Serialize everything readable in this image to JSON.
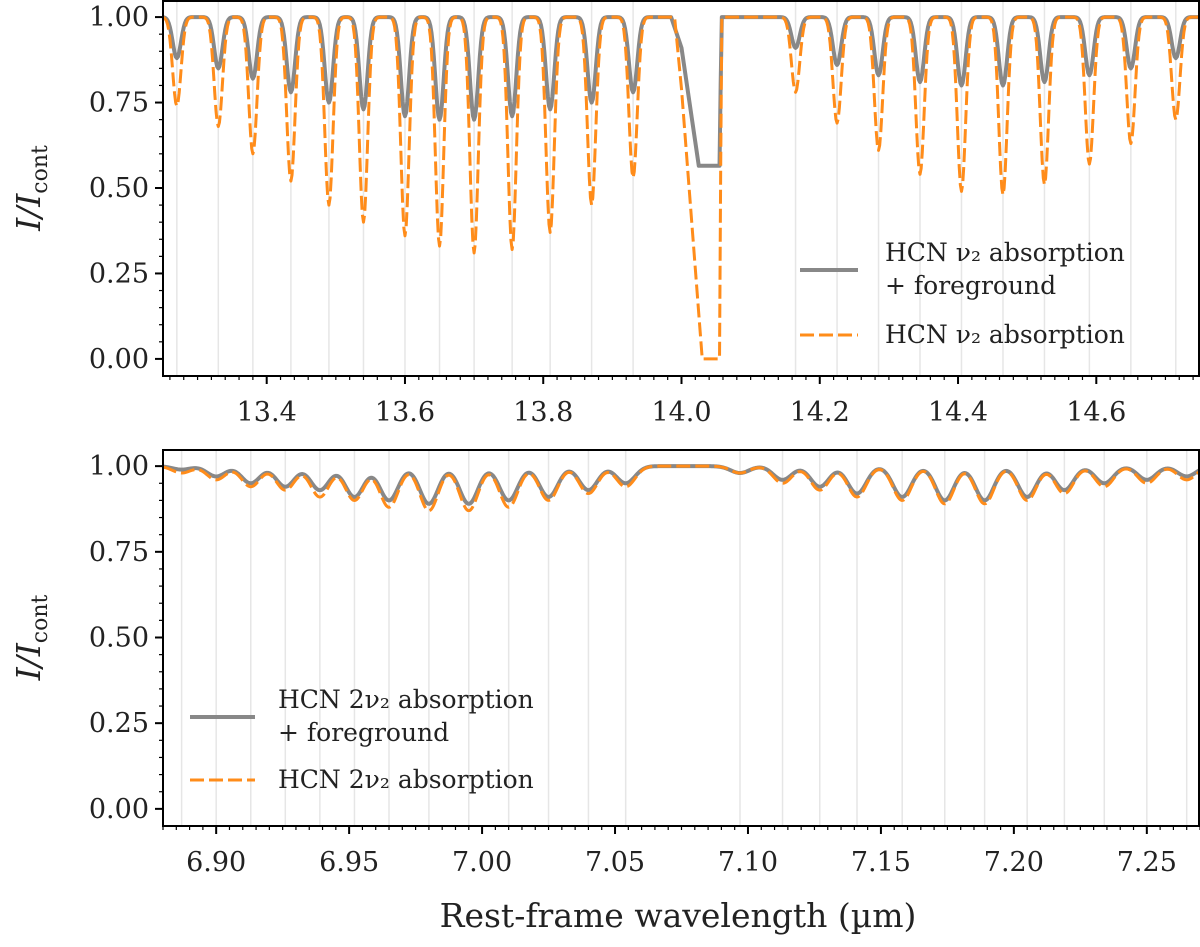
{
  "figure": {
    "xlabel": "Rest-frame wavelength (µm)"
  },
  "chart_data": [
    {
      "type": "line",
      "ylabel": "I/I",
      "ylabel_sub": "cont",
      "xlim": [
        13.25,
        14.75
      ],
      "ylim": [
        -0.05,
        1.05
      ],
      "x_ticks": [
        "13.4",
        "13.6",
        "13.8",
        "14.0",
        "14.2",
        "14.4",
        "14.6"
      ],
      "y_ticks": [
        "0.00",
        "0.25",
        "0.50",
        "0.75",
        "1.00"
      ],
      "legend": {
        "position": "center-right",
        "entries": [
          {
            "line1": "HCN ν₂ absorption",
            "line2": "+ foreground",
            "series": 0
          },
          {
            "line1": "HCN ν₂ absorption",
            "line2": "",
            "series": 1
          }
        ]
      },
      "series": [
        {
          "color": "#888888",
          "style": "solid",
          "line_x": [
            13.27,
            13.33,
            13.38,
            13.435,
            13.49,
            13.54,
            13.6,
            13.65,
            13.7,
            13.755,
            13.81,
            13.87,
            13.93,
            14.165,
            14.225,
            14.285,
            14.345,
            14.405,
            14.465,
            14.525,
            14.59,
            14.65,
            14.715
          ],
          "line_depth": [
            0.12,
            0.15,
            0.18,
            0.22,
            0.25,
            0.27,
            0.29,
            0.3,
            0.3,
            0.29,
            0.27,
            0.25,
            0.22,
            0.09,
            0.14,
            0.17,
            0.19,
            0.2,
            0.2,
            0.19,
            0.17,
            0.15,
            0.12
          ],
          "q_branch": {
            "x_start": 13.985,
            "x_peak": 14.0,
            "peak": 0.91,
            "x_floor": 14.025,
            "floor": 0.565,
            "x_end": 14.055
          }
        },
        {
          "color": "#ff8c1a",
          "style": "dashed",
          "line_x": [
            13.27,
            13.33,
            13.38,
            13.435,
            13.49,
            13.54,
            13.6,
            13.65,
            13.7,
            13.755,
            13.81,
            13.87,
            13.93,
            14.165,
            14.225,
            14.285,
            14.345,
            14.405,
            14.465,
            14.525,
            14.59,
            14.65,
            14.715
          ],
          "line_depth": [
            0.26,
            0.32,
            0.4,
            0.48,
            0.55,
            0.6,
            0.64,
            0.67,
            0.69,
            0.68,
            0.63,
            0.55,
            0.47,
            0.22,
            0.31,
            0.39,
            0.46,
            0.51,
            0.52,
            0.49,
            0.43,
            0.37,
            0.3
          ],
          "q_branch": {
            "x_start": 13.99,
            "x_peak": 14.0,
            "peak": 0.79,
            "x_floor": 14.03,
            "floor": 0.0,
            "x_end": 14.055
          }
        }
      ]
    },
    {
      "type": "line",
      "ylabel": "I/I",
      "ylabel_sub": "cont",
      "xlim": [
        6.88,
        7.27
      ],
      "ylim": [
        -0.05,
        1.05
      ],
      "x_ticks": [
        "6.90",
        "6.95",
        "7.00",
        "7.05",
        "7.10",
        "7.15",
        "7.20",
        "7.25"
      ],
      "y_ticks": [
        "0.00",
        "0.25",
        "0.50",
        "0.75",
        "1.00"
      ],
      "legend": {
        "position": "lower-left",
        "entries": [
          {
            "line1": "HCN 2ν₂ absorption",
            "line2": "+ foreground",
            "series": 0
          },
          {
            "line1": "HCN 2ν₂ absorption",
            "line2": "",
            "series": 1
          }
        ]
      },
      "series": [
        {
          "color": "#888888",
          "style": "solid",
          "line_x": [
            6.887,
            6.9,
            6.913,
            6.926,
            6.939,
            6.952,
            6.965,
            6.98,
            6.995,
            7.01,
            7.025,
            7.04,
            7.054,
            7.097,
            7.113,
            7.127,
            7.141,
            7.158,
            7.174,
            7.189,
            7.205,
            7.219,
            7.234,
            7.25,
            7.265
          ],
          "line_depth": [
            0.01,
            0.03,
            0.05,
            0.06,
            0.07,
            0.09,
            0.1,
            0.11,
            0.11,
            0.1,
            0.09,
            0.07,
            0.05,
            0.02,
            0.04,
            0.06,
            0.08,
            0.09,
            0.1,
            0.1,
            0.09,
            0.07,
            0.05,
            0.04,
            0.03
          ]
        },
        {
          "color": "#ff8c1a",
          "style": "dashed",
          "line_x": [
            6.887,
            6.9,
            6.913,
            6.926,
            6.939,
            6.952,
            6.965,
            6.98,
            6.995,
            7.01,
            7.025,
            7.04,
            7.054,
            7.097,
            7.113,
            7.127,
            7.141,
            7.158,
            7.174,
            7.189,
            7.205,
            7.219,
            7.234,
            7.25,
            7.265
          ],
          "line_depth": [
            0.02,
            0.04,
            0.06,
            0.07,
            0.09,
            0.1,
            0.12,
            0.13,
            0.13,
            0.12,
            0.1,
            0.08,
            0.06,
            0.02,
            0.05,
            0.07,
            0.09,
            0.1,
            0.11,
            0.11,
            0.1,
            0.08,
            0.06,
            0.05,
            0.04
          ]
        }
      ]
    }
  ]
}
